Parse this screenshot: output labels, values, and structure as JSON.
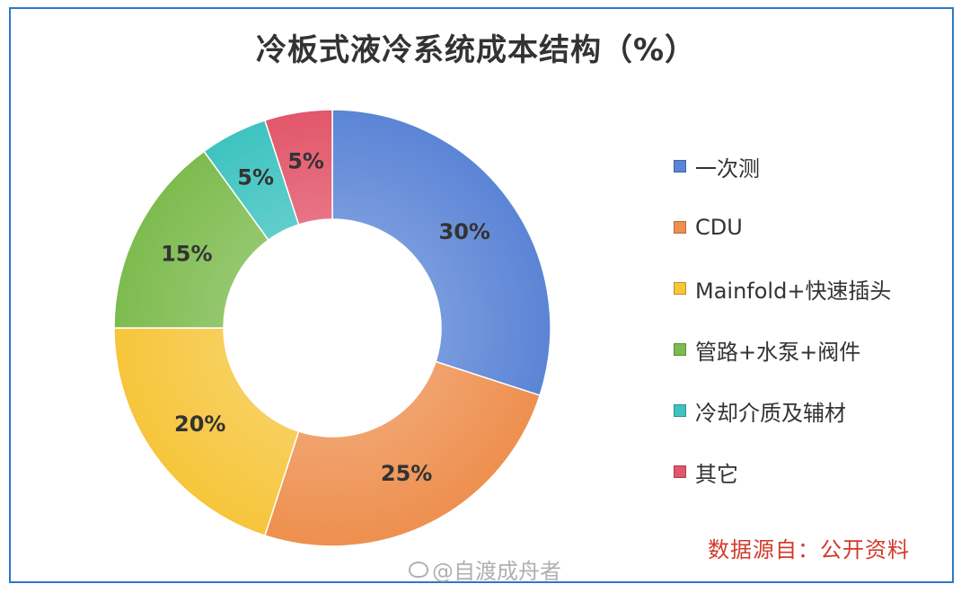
{
  "title": "冷板式液冷系统成本结构（%）",
  "source_note": "数据源自：公开资料",
  "watermark": "@自渡成舟者",
  "chart_data": {
    "type": "pie",
    "title": "冷板式液冷系统成本结构（%）",
    "donut": true,
    "legend_position": "right",
    "categories": [
      "一次测",
      "CDU",
      "Mainfold+快速插头",
      "管路+水泵+阀件",
      "冷却介质及辅材",
      "其它"
    ],
    "values": [
      30,
      25,
      20,
      15,
      5,
      5
    ],
    "labels": [
      "30%",
      "25%",
      "20%",
      "15%",
      "5%",
      "5%"
    ],
    "colors": [
      "#5b84d6",
      "#ee8f4e",
      "#f6c53a",
      "#7dbb4e",
      "#3ec3c0",
      "#e2566a"
    ]
  }
}
